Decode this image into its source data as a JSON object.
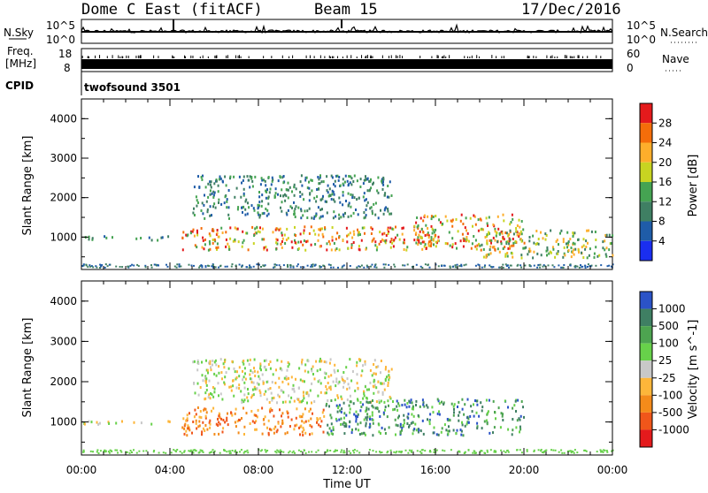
{
  "header": {
    "title": "Dome C East (fitACF)",
    "beam": "Beam 15",
    "date": "17/Dec/2016"
  },
  "status_panels": {
    "nsky_label": "N.Sky",
    "nsky_ticks": [
      "10^5",
      "10^0"
    ],
    "nsearch_label": "N.Search",
    "nsearch_ticks": [
      "10^5",
      "10^0"
    ],
    "freq_label": "Freq.",
    "freq_unit": "[MHz]",
    "freq_ticks": [
      "18",
      "8"
    ],
    "nave_label": "Nave",
    "nave_ticks": [
      "60",
      "0"
    ],
    "cpid_label": "CPID",
    "cpid_value": "twofsound 3501"
  },
  "power_scale": {
    "label": "Power [dB]",
    "ticks": [
      "28",
      "24",
      "20",
      "16",
      "12",
      "8",
      "4"
    ],
    "colors": [
      "#e41a1c",
      "#f46d0a",
      "#fdae2b",
      "#c8d421",
      "#45a352",
      "#3f7f63",
      "#1f5ca8",
      "#1a2ef0"
    ]
  },
  "velocity_scale": {
    "label": "Velocity [m s^-1]",
    "ticks": [
      "1000",
      "500",
      "100",
      "25",
      "-25",
      "-100",
      "-500",
      "-1000"
    ],
    "colors": [
      "#2b53c7",
      "#3f7f63",
      "#4da450",
      "#67d14a",
      "#c8c8c8",
      "#fdb63a",
      "#f48b1a",
      "#f0561a",
      "#e41a1c"
    ]
  },
  "chart_data": [
    {
      "type": "heatmap",
      "name": "power",
      "ylabel": "Slant Range [km]",
      "xlabel": "Time UT",
      "xlim": [
        0,
        24
      ],
      "ylim": [
        180,
        4500
      ],
      "x_ticks": [
        "00:00",
        "04:00",
        "08:00",
        "12:00",
        "16:00",
        "20:00",
        "00:00"
      ],
      "y_ticks": [
        "1000",
        "2000",
        "3000",
        "4000"
      ],
      "colorbar": "Power [dB]",
      "echo_regions": [
        {
          "t_start": 0.0,
          "t_end": 4.0,
          "range_min": 950,
          "range_max": 1050,
          "level": "low"
        },
        {
          "t_start": 4.5,
          "t_end": 16.0,
          "range_min": 700,
          "range_max": 1300,
          "level": "high"
        },
        {
          "t_start": 5.0,
          "t_end": 14.0,
          "range_min": 1500,
          "range_max": 2600,
          "level": "low"
        },
        {
          "t_start": 15.0,
          "t_end": 20.0,
          "range_min": 700,
          "range_max": 1600,
          "level": "high"
        },
        {
          "t_start": 18.0,
          "t_end": 24.0,
          "range_min": 500,
          "range_max": 1200,
          "level": "medium"
        }
      ]
    },
    {
      "type": "heatmap",
      "name": "velocity",
      "ylabel": "Slant Range [km]",
      "xlabel": "Time UT",
      "xlim": [
        0,
        24
      ],
      "ylim": [
        180,
        4500
      ],
      "x_ticks": [
        "00:00",
        "04:00",
        "08:00",
        "12:00",
        "16:00",
        "20:00",
        "00:00"
      ],
      "y_ticks": [
        "1000",
        "2000",
        "3000",
        "4000"
      ],
      "colorbar": "Velocity [m s^-1]",
      "echo_regions": [
        {
          "t_start": 0.0,
          "t_end": 4.0,
          "range_min": 950,
          "range_max": 1050,
          "level": "near-zero"
        },
        {
          "t_start": 4.5,
          "t_end": 11.0,
          "range_min": 700,
          "range_max": 1400,
          "level": "negative"
        },
        {
          "t_start": 5.0,
          "t_end": 14.0,
          "range_min": 1500,
          "range_max": 2600,
          "level": "near-zero"
        },
        {
          "t_start": 11.0,
          "t_end": 20.0,
          "range_min": 700,
          "range_max": 1600,
          "level": "positive"
        }
      ]
    }
  ]
}
